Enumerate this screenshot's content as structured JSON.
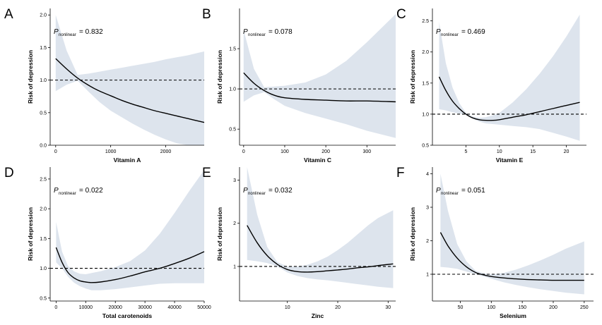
{
  "figure": {
    "colors": {
      "ci_band": "#dde4ed",
      "curve": "#000000",
      "reference_line": "#000000",
      "axis": "#000000"
    }
  },
  "chart_data": [
    {
      "panel": "A",
      "type": "line",
      "xlabel": "Vitamin A",
      "ylabel": "Risk of depression",
      "p_label": "P",
      "p_subscript": "nonlinear",
      "p_value": "= 0.832",
      "xlim": [
        -100,
        2700
      ],
      "ylim": [
        0,
        2.1
      ],
      "xticks": [
        0,
        1000,
        2000
      ],
      "xtick_labels": [
        "0",
        "1000",
        "2000"
      ],
      "yticks": [
        0,
        0.5,
        1.0,
        1.5,
        2.0
      ],
      "ytick_labels": [
        "0.0",
        "0.5",
        "1.0",
        "1.5",
        "2.0"
      ],
      "reference_y": 1.0,
      "series": [
        {
          "name": "Risk of depression",
          "x": [
            0,
            200,
            400,
            600,
            800,
            1000,
            1200,
            1400,
            1600,
            1800,
            2000,
            2200,
            2400,
            2600,
            2700
          ],
          "y": [
            1.33,
            1.17,
            1.03,
            0.92,
            0.83,
            0.76,
            0.69,
            0.63,
            0.58,
            0.53,
            0.49,
            0.45,
            0.41,
            0.37,
            0.35
          ],
          "lower": [
            0.83,
            0.93,
            0.99,
            0.82,
            0.66,
            0.53,
            0.43,
            0.33,
            0.24,
            0.16,
            0.09,
            0.03,
            0.0,
            0.0,
            0.0
          ],
          "upper": [
            2.0,
            1.45,
            1.08,
            1.1,
            1.13,
            1.16,
            1.19,
            1.22,
            1.25,
            1.28,
            1.32,
            1.35,
            1.38,
            1.42,
            1.44
          ]
        }
      ]
    },
    {
      "panel": "B",
      "type": "line",
      "xlabel": "Vitamin C",
      "ylabel": "Risk of depression",
      "p_label": "P",
      "p_subscript": "nonlinear",
      "p_value": "= 0.078",
      "xlim": [
        -10,
        370
      ],
      "ylim": [
        0.3,
        2.0
      ],
      "xticks": [
        0,
        100,
        200,
        300
      ],
      "xtick_labels": [
        "0",
        "100",
        "200",
        "300"
      ],
      "yticks": [
        0.5,
        1.0,
        1.5
      ],
      "ytick_labels": [
        "0.5",
        "1.0",
        "1.5"
      ],
      "reference_y": 1.0,
      "series": [
        {
          "name": "Risk of depression",
          "x": [
            0,
            25,
            50,
            75,
            100,
            150,
            200,
            250,
            300,
            370
          ],
          "y": [
            1.2,
            1.07,
            0.98,
            0.92,
            0.89,
            0.87,
            0.86,
            0.85,
            0.85,
            0.84
          ],
          "lower": [
            0.84,
            0.92,
            0.96,
            0.87,
            0.79,
            0.7,
            0.63,
            0.56,
            0.48,
            0.39
          ],
          "upper": [
            1.73,
            1.25,
            1.02,
            1.03,
            1.04,
            1.08,
            1.18,
            1.35,
            1.58,
            1.93
          ]
        }
      ]
    },
    {
      "panel": "C",
      "type": "line",
      "xlabel": "Vitamin E",
      "ylabel": "Risk of depression",
      "p_label": "P",
      "p_subscript": "nonlinear",
      "p_value": "= 0.469",
      "xlim": [
        0,
        23
      ],
      "ylim": [
        0.5,
        2.7
      ],
      "xticks": [
        5,
        10,
        15,
        20
      ],
      "xtick_labels": [
        "5",
        "10",
        "15",
        "20"
      ],
      "yticks": [
        0.5,
        1.0,
        1.5,
        2.0,
        2.5
      ],
      "ytick_labels": [
        "0.5",
        "1.0",
        "1.5",
        "2.0",
        "2.5"
      ],
      "reference_y": 1.0,
      "series": [
        {
          "name": "Risk of depression",
          "x": [
            1,
            2,
            3,
            4,
            5,
            6,
            7,
            8,
            9,
            10,
            12,
            14,
            16,
            18,
            20,
            22
          ],
          "y": [
            1.6,
            1.38,
            1.21,
            1.09,
            1.0,
            0.94,
            0.91,
            0.9,
            0.9,
            0.91,
            0.95,
            0.99,
            1.04,
            1.09,
            1.14,
            1.19
          ],
          "lower": [
            1.08,
            1.06,
            1.03,
            1.01,
            0.99,
            0.93,
            0.88,
            0.85,
            0.84,
            0.83,
            0.81,
            0.79,
            0.76,
            0.7,
            0.64,
            0.57
          ],
          "upper": [
            2.48,
            1.82,
            1.43,
            1.18,
            1.02,
            0.96,
            0.94,
            0.95,
            0.98,
            1.02,
            1.19,
            1.4,
            1.65,
            1.93,
            2.25,
            2.6
          ]
        }
      ]
    },
    {
      "panel": "D",
      "type": "line",
      "xlabel": "Total carotenoids",
      "ylabel": "Risk of depression",
      "p_label": "P",
      "p_subscript": "nonlinear",
      "p_value": "= 0.022",
      "xlim": [
        -2000,
        50000
      ],
      "ylim": [
        0.45,
        2.7
      ],
      "xticks": [
        0,
        10000,
        20000,
        30000,
        40000,
        50000
      ],
      "xtick_labels": [
        "0",
        "10000",
        "20000",
        "30000",
        "40000",
        "50000"
      ],
      "yticks": [
        0.5,
        1.0,
        1.5,
        2.0,
        2.5
      ],
      "ytick_labels": [
        "0.5",
        "1.0",
        "1.5",
        "2.0",
        "2.5"
      ],
      "reference_y": 1.0,
      "series": [
        {
          "name": "Risk of depression",
          "x": [
            0,
            2000,
            4000,
            6000,
            8000,
            10000,
            12000,
            15000,
            20000,
            25000,
            30000,
            35000,
            40000,
            45000,
            50000
          ],
          "y": [
            1.35,
            1.1,
            0.93,
            0.84,
            0.79,
            0.77,
            0.76,
            0.77,
            0.81,
            0.87,
            0.94,
            1.0,
            1.08,
            1.17,
            1.28
          ],
          "lower": [
            1.1,
            1.0,
            0.86,
            0.76,
            0.7,
            0.66,
            0.63,
            0.63,
            0.65,
            0.68,
            0.71,
            0.74,
            0.75,
            0.75,
            0.75
          ],
          "upper": [
            1.78,
            1.28,
            1.04,
            0.95,
            0.91,
            0.9,
            0.92,
            0.95,
            1.02,
            1.12,
            1.3,
            1.58,
            1.93,
            2.3,
            2.65
          ]
        }
      ]
    },
    {
      "panel": "E",
      "type": "line",
      "xlabel": "Zinc",
      "ylabel": "Risk of depression",
      "p_label": "P",
      "p_subscript": "nonlinear",
      "p_value": "= 0.032",
      "xlim": [
        0.5,
        31.5
      ],
      "ylim": [
        0.2,
        3.3
      ],
      "xticks": [
        10,
        20,
        30
      ],
      "xtick_labels": [
        "10",
        "20",
        "30"
      ],
      "yticks": [
        1,
        2,
        3
      ],
      "ytick_labels": [
        "1",
        "2",
        "3"
      ],
      "reference_y": 1.0,
      "series": [
        {
          "name": "Risk of depression",
          "x": [
            2,
            4,
            6,
            8,
            10,
            12,
            14,
            16,
            18,
            20,
            22,
            24,
            26,
            28,
            31
          ],
          "y": [
            1.95,
            1.55,
            1.25,
            1.05,
            0.93,
            0.88,
            0.87,
            0.88,
            0.9,
            0.92,
            0.94,
            0.97,
            0.99,
            1.02,
            1.06
          ],
          "lower": [
            1.15,
            1.12,
            1.08,
            1.0,
            0.86,
            0.78,
            0.73,
            0.7,
            0.68,
            0.65,
            0.62,
            0.59,
            0.56,
            0.53,
            0.5
          ],
          "upper": [
            3.35,
            2.2,
            1.45,
            1.1,
            1.0,
            1.0,
            1.04,
            1.12,
            1.23,
            1.38,
            1.55,
            1.75,
            1.95,
            2.12,
            2.3
          ]
        }
      ]
    },
    {
      "panel": "F",
      "type": "line",
      "xlabel": "Selenium",
      "ylabel": "Risk of depression",
      "p_label": "P",
      "p_subscript": "nonlinear",
      "p_value": "= 0.051",
      "xlim": [
        5,
        265
      ],
      "ylim": [
        0.2,
        4.2
      ],
      "xticks": [
        50,
        100,
        150,
        200,
        250
      ],
      "xtick_labels": [
        "50",
        "100",
        "150",
        "200",
        "250"
      ],
      "yticks": [
        1,
        2,
        3,
        4
      ],
      "ytick_labels": [
        "1",
        "2",
        "3",
        "4"
      ],
      "reference_y": 1.0,
      "series": [
        {
          "name": "Risk of depression",
          "x": [
            18,
            30,
            45,
            60,
            75,
            90,
            105,
            120,
            140,
            160,
            180,
            200,
            220,
            250
          ],
          "y": [
            2.25,
            1.85,
            1.48,
            1.22,
            1.05,
            0.97,
            0.92,
            0.89,
            0.86,
            0.84,
            0.83,
            0.82,
            0.82,
            0.82
          ],
          "lower": [
            1.22,
            1.2,
            1.16,
            1.08,
            1.0,
            0.92,
            0.84,
            0.76,
            0.68,
            0.61,
            0.55,
            0.5,
            0.45,
            0.4
          ],
          "upper": [
            4.0,
            2.9,
            1.9,
            1.38,
            1.1,
            1.02,
            1.0,
            1.04,
            1.14,
            1.27,
            1.42,
            1.58,
            1.76,
            1.98
          ]
        }
      ]
    }
  ]
}
